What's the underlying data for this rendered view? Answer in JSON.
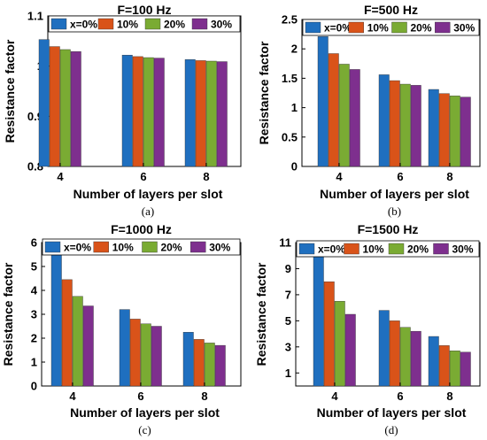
{
  "chart_data": [
    {
      "type": "bar",
      "panel": "(a)",
      "title": "F=100 Hz",
      "xlabel": "Number of layers per slot",
      "ylabel": "Resistance factor",
      "categories": [
        "4",
        "6",
        "8"
      ],
      "ylim": [
        0.8,
        1.1
      ],
      "yticks": [
        "0.8",
        "0.9",
        "1",
        "1.1"
      ],
      "legend": "top",
      "series": [
        {
          "name": "x=0%",
          "values": [
            1.053,
            1.022,
            1.013
          ]
        },
        {
          "name": "10%",
          "values": [
            1.039,
            1.019,
            1.011
          ]
        },
        {
          "name": "20%",
          "values": [
            1.033,
            1.017,
            1.01
          ]
        },
        {
          "name": "30%",
          "values": [
            1.029,
            1.016,
            1.009
          ]
        }
      ]
    },
    {
      "type": "bar",
      "panel": "(b)",
      "title": "F=500 Hz",
      "xlabel": "Number of layers per slot",
      "ylabel": "Resistance factor",
      "categories": [
        "4",
        "6",
        "8"
      ],
      "ylim": [
        0,
        2.5
      ],
      "yticks": [
        "0",
        "0.5",
        "1",
        "1.5",
        "2",
        "2.5"
      ],
      "legend": "top",
      "series": [
        {
          "name": "x=0%",
          "values": [
            2.21,
            1.56,
            1.31
          ]
        },
        {
          "name": "10%",
          "values": [
            1.92,
            1.46,
            1.24
          ]
        },
        {
          "name": "20%",
          "values": [
            1.74,
            1.4,
            1.2
          ]
        },
        {
          "name": "30%",
          "values": [
            1.65,
            1.38,
            1.18
          ]
        }
      ]
    },
    {
      "type": "bar",
      "panel": "(c)",
      "title": "F=1000 Hz",
      "xlabel": "Number of layers per slot",
      "ylabel": "Resistance factor",
      "categories": [
        "4",
        "6",
        "8"
      ],
      "ylim": [
        0,
        6
      ],
      "yticks": [
        "0",
        "1",
        "2",
        "3",
        "4",
        "5",
        "6"
      ],
      "legend": "top",
      "series": [
        {
          "name": "x=0%",
          "values": [
            5.5,
            3.2,
            2.25
          ]
        },
        {
          "name": "10%",
          "values": [
            4.45,
            2.8,
            1.95
          ]
        },
        {
          "name": "20%",
          "values": [
            3.75,
            2.6,
            1.8
          ]
        },
        {
          "name": "30%",
          "values": [
            3.35,
            2.5,
            1.7
          ]
        }
      ]
    },
    {
      "type": "bar",
      "panel": "(d)",
      "title": "F=1500 Hz",
      "xlabel": "Number of layers per slot",
      "ylabel": "Resistance factor",
      "categories": [
        "4",
        "6",
        "8"
      ],
      "ylim": [
        0,
        11
      ],
      "yticks": [
        "1",
        "3",
        "5",
        "7",
        "9",
        "11"
      ],
      "legend": "top",
      "series": [
        {
          "name": "x=0%",
          "values": [
            10.0,
            5.8,
            3.8
          ]
        },
        {
          "name": "10%",
          "values": [
            8.0,
            5.0,
            3.1
          ]
        },
        {
          "name": "20%",
          "values": [
            6.5,
            4.5,
            2.7
          ]
        },
        {
          "name": "30%",
          "values": [
            5.5,
            4.2,
            2.6
          ]
        }
      ]
    }
  ],
  "colors": [
    "#1f6fbf",
    "#d95319",
    "#7aab33",
    "#7e2f8e"
  ]
}
